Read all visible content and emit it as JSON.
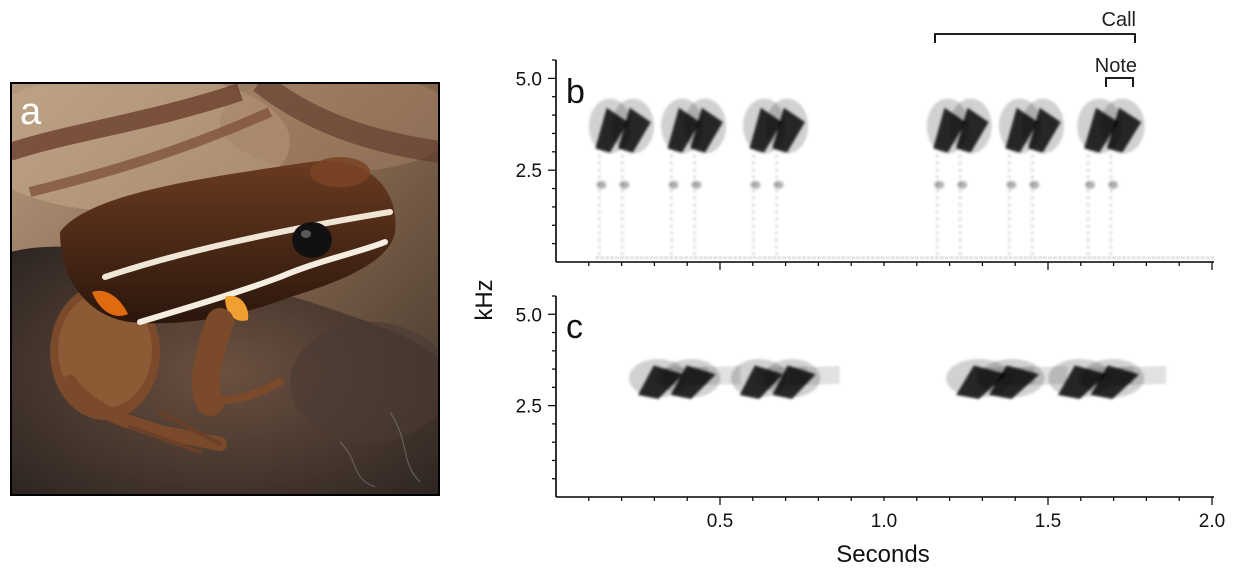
{
  "figure": {
    "photo_panel": {
      "label": "a",
      "subject": "brown frog with pale lateral stripe and orange flash marks on a dark rock"
    },
    "annotations": {
      "call": "Call",
      "note": "Note"
    }
  },
  "chart_data": [
    {
      "type": "heatmap",
      "panel": "b",
      "description_kind": "spectrogram",
      "x": {
        "label": "Seconds",
        "range": [
          0,
          2.0
        ],
        "ticks": [
          0.5,
          1.0,
          1.5,
          2.0
        ]
      },
      "y": {
        "label": "kHz",
        "range": [
          0,
          5.5
        ],
        "ticks": [
          2.5,
          5.0
        ]
      },
      "calls": [
        {
          "start": 0.12,
          "end": 0.3
        },
        {
          "start": 0.34,
          "end": 0.52
        },
        {
          "start": 0.59,
          "end": 0.77
        },
        {
          "start": 1.15,
          "end": 1.33
        },
        {
          "start": 1.37,
          "end": 1.55
        },
        {
          "start": 1.61,
          "end": 1.8
        }
      ],
      "notes_per_call": 2,
      "note_offset_s": 0.07,
      "note_freq_khz": [
        3.2,
        4.2
      ],
      "harmonic_khz": 2.1
    },
    {
      "type": "heatmap",
      "panel": "c",
      "description_kind": "spectrogram",
      "x": {
        "label": "Seconds",
        "range": [
          0,
          2.0
        ],
        "ticks": [
          0.5,
          1.0,
          1.5,
          2.0
        ]
      },
      "y": {
        "label": "kHz",
        "range": [
          0,
          5.5
        ],
        "ticks": [
          2.5,
          5.0
        ]
      },
      "calls": [
        {
          "start": 0.25,
          "end": 0.5
        },
        {
          "start": 0.56,
          "end": 0.8
        },
        {
          "start": 1.22,
          "end": 1.5
        },
        {
          "start": 1.53,
          "end": 1.8
        }
      ],
      "notes_per_call": 2,
      "note_offset_s": 0.1,
      "note_freq_khz": [
        2.9,
        3.6
      ]
    }
  ],
  "axis_text": {
    "ylabel": "kHz",
    "xlabel": "Seconds",
    "panel_b": "b",
    "panel_c": "c",
    "yticks": [
      "5.0",
      "2.5"
    ],
    "xticks": [
      "0.5",
      "1.0",
      "1.5",
      "2.0"
    ]
  }
}
